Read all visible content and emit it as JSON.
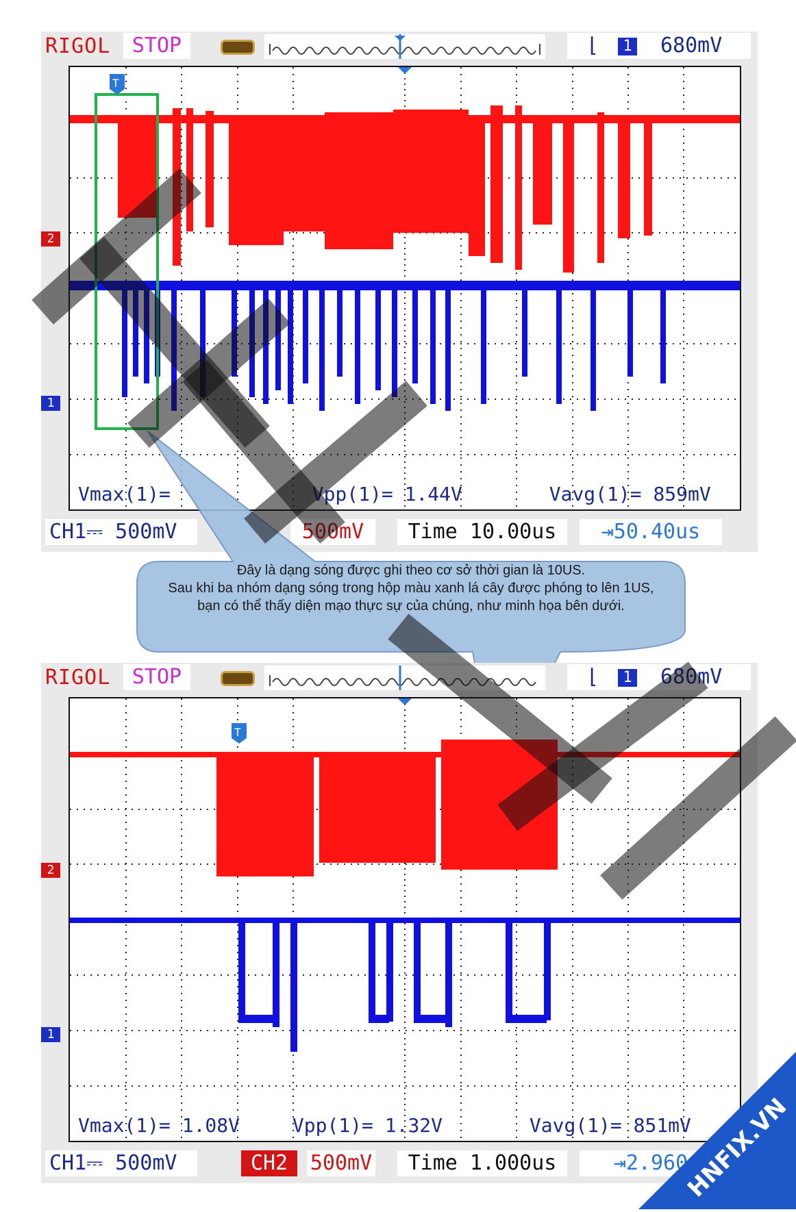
{
  "top": {
    "brand": "RIGOL",
    "state": "STOP",
    "trigger_edge": "⌊",
    "trigger_src": "1",
    "trigger_level": "680mV",
    "markers": {
      "ch2": "2",
      "ch1": "1",
      "trig": "T"
    },
    "meas_vmax": "Vmax(1)=",
    "meas_vpp": "Vpp(1)= 1.44V",
    "meas_vavg": "Vavg(1)= 859mV",
    "ch1": "CH1⎓ 500mV",
    "ch2": "500mV",
    "time": "Time 10.00us",
    "offset": "⇥50.40us"
  },
  "callout": {
    "line1": "Đây là dạng sóng được ghi theo cơ sở thời gian là 10US.",
    "line2": "Sau khi ba nhóm dạng sóng trong hộp màu xanh lá cây được phóng to lên 1US,",
    "line3": "bạn có thể thấy diện mạo thực sự của chúng, như minh họa bên dưới."
  },
  "bottom": {
    "brand": "RIGOL",
    "state": "STOP",
    "trigger_edge": "⌊",
    "trigger_src": "1",
    "trigger_level": "680mV",
    "meas_vmax": "Vmax(1)= 1.08V",
    "meas_vpp": "Vpp(1)= 1.32V",
    "meas_vavg": "Vavg(1)= 851mV",
    "ch1": "CH1⎓ 500mV",
    "ch2_badge": "CH2",
    "ch2": "500mV",
    "time": "Time 1.000us",
    "offset": "⇥2.960"
  },
  "watermark": "HNFIX.VN",
  "colors": {
    "ch2_red": "#ff1414",
    "ch1_blue": "#1010e0",
    "highlight_green": "#22b24c",
    "callout_fill": "#9dbde0"
  }
}
